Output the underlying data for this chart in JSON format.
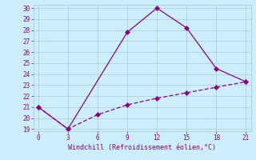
{
  "line1_x": [
    0,
    3,
    9,
    12,
    15,
    18,
    21
  ],
  "line1_y": [
    21.0,
    19.0,
    27.8,
    30.0,
    28.2,
    24.5,
    23.3
  ],
  "line2_x": [
    0,
    3,
    6,
    9,
    12,
    15,
    18,
    21
  ],
  "line2_y": [
    21.0,
    19.0,
    20.3,
    21.2,
    21.8,
    22.3,
    22.8,
    23.3
  ],
  "line_color": "#880088",
  "bg_color": "#cceeff",
  "grid_color": "#aacccc",
  "xlabel": "Windchill (Refroidissement éolien,°C)",
  "xlabel_color": "#880088",
  "xticks": [
    0,
    3,
    6,
    9,
    12,
    15,
    18,
    21
  ],
  "yticks": [
    19,
    20,
    21,
    22,
    23,
    24,
    25,
    26,
    27,
    28,
    29,
    30
  ],
  "xlim": [
    -0.5,
    21.5
  ],
  "ylim": [
    18.8,
    30.3
  ],
  "tick_color": "#880088",
  "markersize": 3,
  "tick_fontsize": 5.5,
  "xlabel_fontsize": 6.0
}
